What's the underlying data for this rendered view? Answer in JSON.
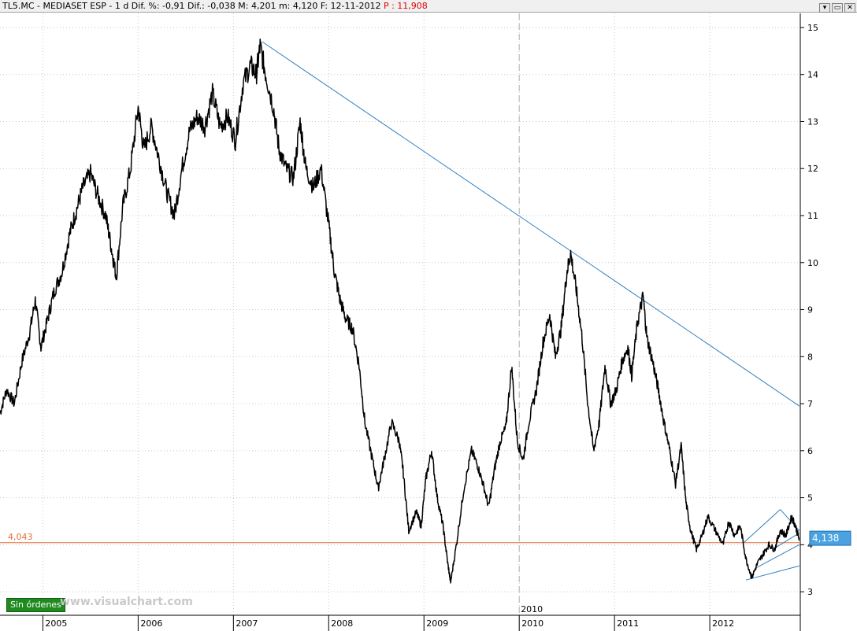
{
  "header": {
    "symbol_info": "TL5.MC - MEDIASET ESP - 1 d Dif. %: -0,91 Dif.: -0,038 M: 4,201 m: 4,120 F: 12-11-2012",
    "p_label": "P : 11,908",
    "window_buttons": [
      "▾",
      "▭",
      "✕"
    ]
  },
  "badge": "Sin órdenes",
  "watermark": "www.visualchart.com",
  "colors": {
    "price": "#000000",
    "trendline": "#2f7fbf",
    "support": "#e0703a",
    "marker_bg": "#4aa3e0",
    "grid": "#c8c8c8"
  },
  "chart_data": {
    "type": "line",
    "x_ticks": [
      "2005",
      "2006",
      "2007",
      "2008",
      "2009",
      "2010",
      "2011",
      "2012"
    ],
    "y_ticks": [
      "3",
      "4",
      "5",
      "6",
      "7",
      "8",
      "9",
      "10",
      "11",
      "12",
      "13",
      "14",
      "15"
    ],
    "ylim": [
      2.5,
      15.3
    ],
    "xlim": [
      2004.55,
      2012.95
    ],
    "grid": true,
    "separator_label": "2010",
    "series": [
      {
        "values": [
          [
            2004.55,
            6.8
          ],
          [
            2004.62,
            7.3
          ],
          [
            2004.7,
            7.0
          ],
          [
            2004.78,
            7.9
          ],
          [
            2004.86,
            8.5
          ],
          [
            2004.92,
            9.2
          ],
          [
            2004.98,
            8.2
          ],
          [
            2005.05,
            8.8
          ],
          [
            2005.12,
            9.4
          ],
          [
            2005.2,
            9.8
          ],
          [
            2005.28,
            10.6
          ],
          [
            2005.35,
            11.1
          ],
          [
            2005.42,
            11.6
          ],
          [
            2005.5,
            11.9
          ],
          [
            2005.58,
            11.4
          ],
          [
            2005.66,
            11.0
          ],
          [
            2005.72,
            10.3
          ],
          [
            2005.77,
            9.7
          ],
          [
            2005.84,
            11.2
          ],
          [
            2005.92,
            12.0
          ],
          [
            2006.0,
            13.3
          ],
          [
            2006.06,
            12.4
          ],
          [
            2006.14,
            12.9
          ],
          [
            2006.22,
            12.2
          ],
          [
            2006.3,
            11.5
          ],
          [
            2006.38,
            11.0
          ],
          [
            2006.46,
            12.0
          ],
          [
            2006.54,
            12.8
          ],
          [
            2006.62,
            13.1
          ],
          [
            2006.7,
            12.9
          ],
          [
            2006.78,
            13.6
          ],
          [
            2006.86,
            12.9
          ],
          [
            2006.94,
            13.1
          ],
          [
            2007.02,
            12.6
          ],
          [
            2007.1,
            13.8
          ],
          [
            2007.18,
            14.2
          ],
          [
            2007.24,
            14.0
          ],
          [
            2007.28,
            14.6
          ],
          [
            2007.34,
            14.0
          ],
          [
            2007.42,
            13.3
          ],
          [
            2007.48,
            12.4
          ],
          [
            2007.55,
            12.0
          ],
          [
            2007.63,
            11.8
          ],
          [
            2007.7,
            13.0
          ],
          [
            2007.76,
            12.0
          ],
          [
            2007.84,
            11.6
          ],
          [
            2007.92,
            12.0
          ],
          [
            2008.0,
            10.8
          ],
          [
            2008.06,
            9.8
          ],
          [
            2008.12,
            9.2
          ],
          [
            2008.18,
            8.8
          ],
          [
            2008.25,
            8.6
          ],
          [
            2008.32,
            7.8
          ],
          [
            2008.38,
            6.6
          ],
          [
            2008.46,
            5.8
          ],
          [
            2008.52,
            5.2
          ],
          [
            2008.58,
            5.8
          ],
          [
            2008.66,
            6.6
          ],
          [
            2008.74,
            6.2
          ],
          [
            2008.78,
            5.6
          ],
          [
            2008.84,
            4.3
          ],
          [
            2008.92,
            4.7
          ],
          [
            2008.97,
            4.4
          ],
          [
            2009.02,
            5.4
          ],
          [
            2009.08,
            6.0
          ],
          [
            2009.14,
            5.0
          ],
          [
            2009.2,
            4.4
          ],
          [
            2009.25,
            3.6
          ],
          [
            2009.28,
            3.2
          ],
          [
            2009.34,
            4.0
          ],
          [
            2009.42,
            5.2
          ],
          [
            2009.5,
            6.0
          ],
          [
            2009.56,
            5.7
          ],
          [
            2009.62,
            5.3
          ],
          [
            2009.68,
            4.8
          ],
          [
            2009.74,
            5.6
          ],
          [
            2009.8,
            6.2
          ],
          [
            2009.86,
            6.5
          ],
          [
            2009.92,
            7.8
          ],
          [
            2009.98,
            6.2
          ],
          [
            2010.04,
            5.8
          ],
          [
            2010.1,
            6.6
          ],
          [
            2010.18,
            7.3
          ],
          [
            2010.25,
            8.3
          ],
          [
            2010.32,
            8.9
          ],
          [
            2010.38,
            8.0
          ],
          [
            2010.44,
            8.6
          ],
          [
            2010.5,
            9.8
          ],
          [
            2010.54,
            10.2
          ],
          [
            2010.6,
            9.4
          ],
          [
            2010.66,
            8.4
          ],
          [
            2010.72,
            7.0
          ],
          [
            2010.78,
            6.0
          ],
          [
            2010.84,
            6.6
          ],
          [
            2010.9,
            7.8
          ],
          [
            2010.96,
            7.0
          ],
          [
            2011.02,
            7.3
          ],
          [
            2011.08,
            7.9
          ],
          [
            2011.14,
            8.2
          ],
          [
            2011.18,
            7.6
          ],
          [
            2011.24,
            8.7
          ],
          [
            2011.3,
            9.3
          ],
          [
            2011.34,
            8.4
          ],
          [
            2011.4,
            7.9
          ],
          [
            2011.46,
            7.3
          ],
          [
            2011.52,
            6.6
          ],
          [
            2011.58,
            6.0
          ],
          [
            2011.64,
            5.3
          ],
          [
            2011.7,
            6.1
          ],
          [
            2011.75,
            4.9
          ],
          [
            2011.8,
            4.3
          ],
          [
            2011.86,
            3.9
          ],
          [
            2011.92,
            4.2
          ],
          [
            2011.98,
            4.6
          ],
          [
            2012.06,
            4.3
          ],
          [
            2012.14,
            4.0
          ],
          [
            2012.2,
            4.5
          ],
          [
            2012.26,
            4.2
          ],
          [
            2012.32,
            4.4
          ],
          [
            2012.38,
            3.7
          ],
          [
            2012.44,
            3.3
          ],
          [
            2012.5,
            3.6
          ],
          [
            2012.56,
            3.8
          ],
          [
            2012.62,
            4.0
          ],
          [
            2012.68,
            3.9
          ],
          [
            2012.74,
            4.3
          ],
          [
            2012.8,
            4.2
          ],
          [
            2012.86,
            4.6
          ],
          [
            2012.9,
            4.4
          ],
          [
            2012.94,
            4.1
          ]
        ]
      }
    ],
    "trendlines": [
      {
        "from": [
          2007.3,
          14.7
        ],
        "to": [
          2012.94,
          6.95
        ]
      },
      {
        "from": [
          2012.36,
          4.05
        ],
        "to": [
          2012.74,
          4.75
        ]
      },
      {
        "from": [
          2012.74,
          4.75
        ],
        "to": [
          2012.94,
          4.3
        ]
      },
      {
        "from": [
          2012.38,
          3.25
        ],
        "to": [
          2012.94,
          3.55
        ]
      },
      {
        "from": [
          2012.48,
          3.5
        ],
        "to": [
          2012.94,
          4.0
        ]
      },
      {
        "from": [
          2012.66,
          3.9
        ],
        "to": [
          2012.94,
          4.25
        ]
      }
    ],
    "support_line": {
      "value": 4.043,
      "label": "4,043"
    },
    "last_value": {
      "value": 4.138,
      "label": "4,138"
    }
  }
}
